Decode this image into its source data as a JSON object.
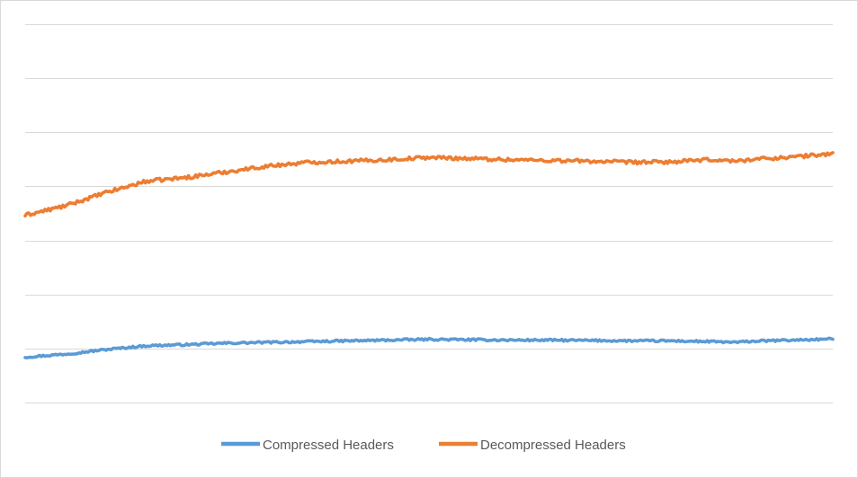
{
  "chart_data": {
    "type": "line",
    "title": "",
    "xlabel": "",
    "ylabel": "",
    "gridlines": true,
    "gridline_count": 8,
    "axis_labels_visible": false,
    "legend_position": "bottom",
    "x_range": [
      0,
      100
    ],
    "ylim": [
      0,
      100
    ],
    "series": [
      {
        "name": "Compressed Headers",
        "color": "#5B9BD5",
        "x": [
          0,
          5,
          10,
          15,
          20,
          25,
          30,
          35,
          40,
          45,
          50,
          55,
          60,
          65,
          70,
          75,
          80,
          85,
          88,
          90,
          95,
          100
        ],
        "values": [
          12.0,
          12.8,
          14.0,
          15.0,
          15.3,
          15.7,
          15.9,
          16.1,
          16.3,
          16.5,
          16.7,
          16.6,
          16.5,
          16.5,
          16.4,
          16.3,
          16.3,
          16.1,
          15.9,
          16.2,
          16.5,
          16.8
        ]
      },
      {
        "name": "Decompressed Headers",
        "color": "#ED7D31",
        "x": [
          0,
          5,
          10,
          15,
          20,
          25,
          30,
          35,
          40,
          45,
          50,
          55,
          60,
          65,
          70,
          75,
          80,
          85,
          88,
          90,
          95,
          100
        ],
        "values": [
          49.5,
          52.0,
          55.5,
          58.5,
          59.5,
          61.0,
          62.5,
          63.5,
          63.8,
          64.2,
          64.8,
          64.5,
          64.2,
          64.0,
          63.8,
          63.5,
          63.6,
          64.2,
          63.8,
          64.3,
          64.9,
          65.8
        ]
      }
    ]
  },
  "legend": {
    "series_1_label": "Compressed Headers",
    "series_2_label": "Decompressed Headers"
  }
}
